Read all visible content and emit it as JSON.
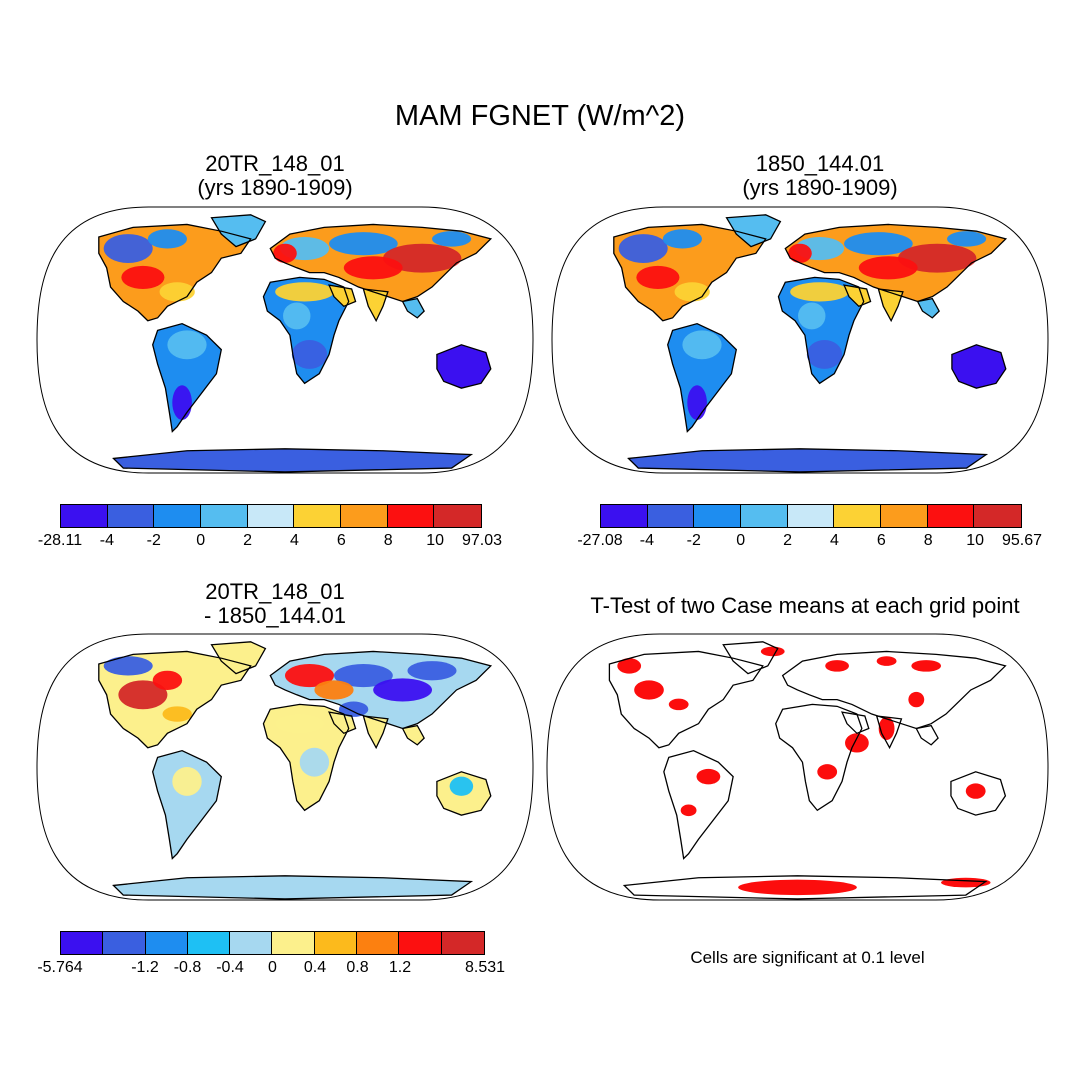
{
  "title": "MAM FGNET (W/m^2)",
  "footnote": "Cells are significant at 0.1 level",
  "chart_data": [
    {
      "type": "heatmap",
      "title_line1": "20TR_148_01",
      "title_line2": "(yrs 1890-1909)",
      "projection": "Robinson world map",
      "colorbar": {
        "colors": [
          "#3b10f0",
          "#3a5fe0",
          "#1e8df0",
          "#55bdf0",
          "#c8e8f8",
          "#fcd234",
          "#fc9c1c",
          "#fc1010",
          "#d42828"
        ],
        "labels": [
          "-28.11",
          "-4",
          "-2",
          "0",
          "2",
          "4",
          "6",
          "8",
          "10",
          "97.03"
        ]
      }
    },
    {
      "type": "heatmap",
      "title_line1": "1850_144.01",
      "title_line2": "(yrs 1890-1909)",
      "projection": "Robinson world map",
      "colorbar": {
        "colors": [
          "#3b10f0",
          "#3a5fe0",
          "#1e8df0",
          "#55bdf0",
          "#c8e8f8",
          "#fcd234",
          "#fc9c1c",
          "#fc1010",
          "#d42828"
        ],
        "labels": [
          "-27.08",
          "-4",
          "-2",
          "0",
          "2",
          "4",
          "6",
          "8",
          "10",
          "95.67"
        ]
      }
    },
    {
      "type": "heatmap",
      "title_line1": "20TR_148_01",
      "title_line2": "- 1850_144.01",
      "projection": "Robinson world map",
      "colorbar": {
        "colors": [
          "#3b10f0",
          "#3a5fe0",
          "#1e8df0",
          "#1ec0f4",
          "#a6d8f0",
          "#fcf08c",
          "#fcba1c",
          "#fc8010",
          "#fc1010",
          "#d42828"
        ],
        "labels": [
          "-5.764",
          "",
          "-1.2",
          "-0.8",
          "-0.4",
          "0",
          "0.4",
          "0.8",
          "1.2",
          "",
          "8.531"
        ]
      }
    },
    {
      "type": "heatmap",
      "title_line1": "T-Test of two Case means at each grid point",
      "title_line2": "",
      "projection": "Robinson world map",
      "significance_color": "#fc0000"
    }
  ]
}
